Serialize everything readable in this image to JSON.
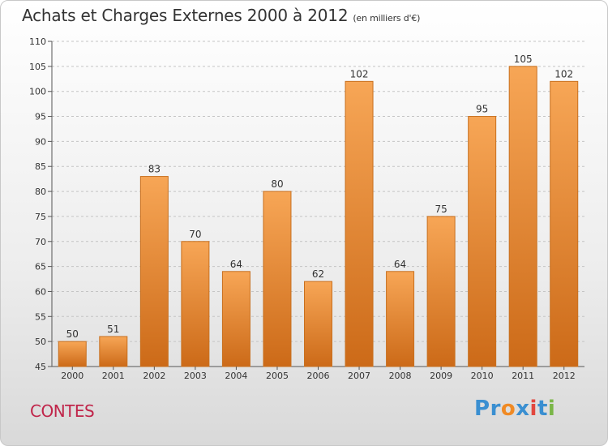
{
  "title": "Achats et Charges Externes 2000 à 2012",
  "subtitle": "(en milliers d'€)",
  "city": "CONTES",
  "logo": {
    "text": "Proxiti",
    "letters": [
      {
        "ch": "P",
        "color": "#3a8fd1"
      },
      {
        "ch": "r",
        "color": "#3a8fd1"
      },
      {
        "ch": "o",
        "color": "#f08a24"
      },
      {
        "ch": "x",
        "color": "#3a8fd1"
      },
      {
        "ch": "i",
        "color": "#e2473e"
      },
      {
        "ch": "t",
        "color": "#3a8fd1"
      },
      {
        "ch": "i",
        "color": "#7ab648"
      }
    ]
  },
  "colors": {
    "bar_top": "#f7a656",
    "bar_bottom": "#cc6a18",
    "bar_border": "#c8701f",
    "grid": "#c4c4c4"
  },
  "chart_data": {
    "type": "bar",
    "title": "Achats et Charges Externes 2000 à 2012",
    "xlabel": "",
    "ylabel": "",
    "categories": [
      "2000",
      "2001",
      "2002",
      "2003",
      "2004",
      "2005",
      "2006",
      "2007",
      "2008",
      "2009",
      "2010",
      "2011",
      "2012"
    ],
    "values": [
      50,
      51,
      83,
      70,
      64,
      80,
      62,
      102,
      64,
      75,
      95,
      105,
      102
    ],
    "ylim": [
      45,
      110
    ],
    "yticks": [
      45,
      50,
      55,
      60,
      65,
      70,
      75,
      80,
      85,
      90,
      95,
      100,
      105,
      110
    ],
    "grid": true
  }
}
